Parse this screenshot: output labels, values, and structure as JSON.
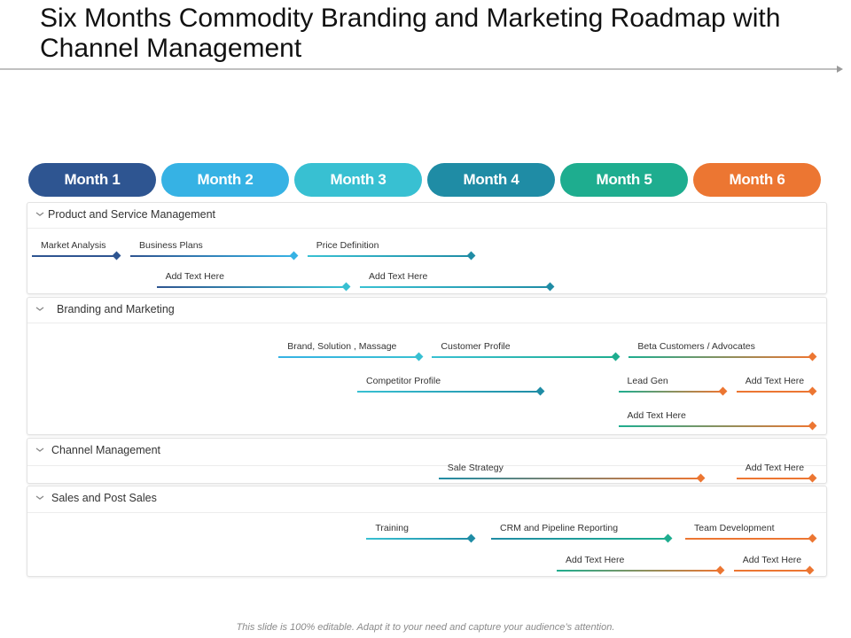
{
  "title": "Six Months Commodity Branding and Marketing Roadmap with Channel Management",
  "footer": "This slide is 100% editable. Adapt it to your need and capture your audience’s attention.",
  "colors": {
    "navy": "#2e5591",
    "skyblue": "#36b2e4",
    "cyan": "#38c0d2",
    "teal": "#1f8ca5",
    "green": "#1ead8f",
    "orange": "#ec7632",
    "panel_border": "#e3e3e3"
  },
  "months": [
    {
      "label": "Month 1",
      "color": "#2e5591"
    },
    {
      "label": "Month 2",
      "color": "#36b2e4"
    },
    {
      "label": "Month 3",
      "color": "#38c0d2"
    },
    {
      "label": "Month 4",
      "color": "#1f8ca5"
    },
    {
      "label": "Month 5",
      "color": "#1ead8f"
    },
    {
      "label": "Month 6",
      "color": "#ec7632"
    }
  ],
  "panels": [
    {
      "title": "Product and Service Management",
      "bars": [
        {
          "label": "Market Analysis",
          "start": 0.0,
          "end": 0.65,
          "from": "#2e5591",
          "to": "#2e5591"
        },
        {
          "label": "Business Plans",
          "start": 0.75,
          "end": 2.0,
          "from": "#2e5591",
          "to": "#36b2e4"
        },
        {
          "label": "Price Definition",
          "start": 2.1,
          "end": 3.35,
          "from": "#38c0d2",
          "to": "#1f8ca5"
        },
        {
          "label": "Add Text Here",
          "start": 0.95,
          "end": 2.4,
          "from": "#2e5591",
          "to": "#38c0d2"
        },
        {
          "label": "Add Text Here",
          "start": 2.5,
          "end": 3.95,
          "from": "#38c0d2",
          "to": "#1f8ca5"
        }
      ]
    },
    {
      "title": "Branding and Marketing",
      "bars": [
        {
          "label": "Brand, Solution , Massage",
          "start": 1.88,
          "end": 2.95,
          "from": "#36b2e4",
          "to": "#38c0d2"
        },
        {
          "label": "Customer Profile",
          "start": 3.05,
          "end": 4.45,
          "from": "#38c0d2",
          "to": "#1ead8f"
        },
        {
          "label": "Beta Customers / Advocates",
          "start": 4.55,
          "end": 5.95,
          "from": "#1ead8f",
          "to": "#ec7632"
        },
        {
          "label": "Competitor Profile",
          "start": 2.48,
          "end": 3.88,
          "from": "#38c0d2",
          "to": "#1f8ca5"
        },
        {
          "label": "Lead Gen",
          "start": 4.47,
          "end": 5.27,
          "from": "#1ead8f",
          "to": "#ec7632"
        },
        {
          "label": "Add Text Here",
          "start": 5.37,
          "end": 5.95,
          "from": "#ec7632",
          "to": "#ec7632"
        },
        {
          "label": "Add Text Here",
          "start": 4.47,
          "end": 5.95,
          "from": "#1ead8f",
          "to": "#ec7632"
        }
      ]
    },
    {
      "title": "Channel Management",
      "bars": [
        {
          "label": "Sale Strategy",
          "start": 3.1,
          "end": 5.1,
          "from": "#1f8ca5",
          "to": "#ec7632"
        },
        {
          "label": "Add Text Here",
          "start": 5.37,
          "end": 5.95,
          "from": "#ec7632",
          "to": "#ec7632"
        }
      ]
    },
    {
      "title": "Sales and Post Sales",
      "bars": [
        {
          "label": "Training",
          "start": 2.55,
          "end": 3.35,
          "from": "#38c0d2",
          "to": "#1f8ca5"
        },
        {
          "label": "CRM and Pipeline Reporting",
          "start": 3.5,
          "end": 4.85,
          "from": "#1f8ca5",
          "to": "#1ead8f"
        },
        {
          "label": "Team Development",
          "start": 4.98,
          "end": 5.95,
          "from": "#ec7632",
          "to": "#ec7632"
        },
        {
          "label": "Add Text Here",
          "start": 4.0,
          "end": 5.25,
          "from": "#1ead8f",
          "to": "#ec7632"
        },
        {
          "label": "Add Text Here",
          "start": 5.35,
          "end": 5.93,
          "from": "#ec7632",
          "to": "#ec7632"
        }
      ]
    }
  ]
}
